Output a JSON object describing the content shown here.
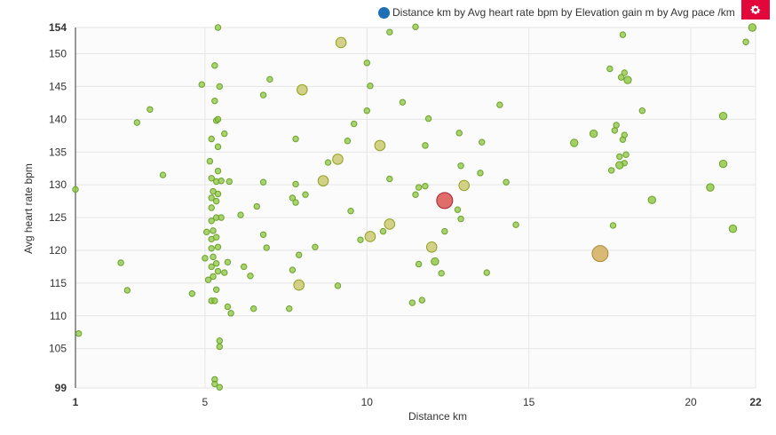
{
  "legend": {
    "label": "Distance km by Avg heart rate bpm by Elevation gain m by Avg pace /km",
    "dot_color": "#1f6fb5"
  },
  "toolbar": {
    "settings_icon": "gear-icon",
    "button_color": "#e2063a"
  },
  "chart_data": {
    "type": "scatter",
    "title": "",
    "xlabel": "Distance km",
    "ylabel": "Avg heart rate bpm",
    "xlim": [
      1,
      22
    ],
    "ylim": [
      99,
      154
    ],
    "x_ticks": [
      "1",
      "5",
      "10",
      "15",
      "20",
      "22"
    ],
    "y_ticks": [
      "99",
      "105",
      "110",
      "115",
      "120",
      "125",
      "130",
      "135",
      "140",
      "145",
      "150",
      "154"
    ],
    "grid": true,
    "legend_position": "top-right",
    "colors": {
      "low": "#8cc63f",
      "mid": "#c9c66a",
      "high": "#d9534f"
    },
    "points": [
      {
        "x": 1.0,
        "y": 129.3,
        "s": 1
      },
      {
        "x": 1.1,
        "y": 107.3,
        "s": 1
      },
      {
        "x": 2.4,
        "y": 118.1,
        "s": 1
      },
      {
        "x": 2.6,
        "y": 113.9,
        "s": 1
      },
      {
        "x": 2.9,
        "y": 139.5,
        "s": 1
      },
      {
        "x": 3.3,
        "y": 141.5,
        "s": 1
      },
      {
        "x": 3.7,
        "y": 131.5,
        "s": 1
      },
      {
        "x": 4.6,
        "y": 113.4,
        "s": 1
      },
      {
        "x": 4.9,
        "y": 145.3,
        "s": 1
      },
      {
        "x": 5.0,
        "y": 118.8,
        "s": 1
      },
      {
        "x": 5.05,
        "y": 122.8,
        "s": 1
      },
      {
        "x": 5.1,
        "y": 115.5,
        "s": 1
      },
      {
        "x": 5.15,
        "y": 133.6,
        "s": 1
      },
      {
        "x": 5.2,
        "y": 137.0,
        "s": 1
      },
      {
        "x": 5.2,
        "y": 131.0,
        "s": 1
      },
      {
        "x": 5.2,
        "y": 128.0,
        "s": 1
      },
      {
        "x": 5.2,
        "y": 124.5,
        "s": 1
      },
      {
        "x": 5.2,
        "y": 120.3,
        "s": 1
      },
      {
        "x": 5.2,
        "y": 117.5,
        "s": 1
      },
      {
        "x": 5.2,
        "y": 112.3,
        "s": 1
      },
      {
        "x": 5.2,
        "y": 126.5,
        "s": 1
      },
      {
        "x": 5.2,
        "y": 121.7,
        "s": 1
      },
      {
        "x": 5.25,
        "y": 129.0,
        "s": 1
      },
      {
        "x": 5.25,
        "y": 123.0,
        "s": 1
      },
      {
        "x": 5.25,
        "y": 119.0,
        "s": 1
      },
      {
        "x": 5.25,
        "y": 116.0,
        "s": 1
      },
      {
        "x": 5.3,
        "y": 100.3,
        "s": 1
      },
      {
        "x": 5.3,
        "y": 99.6,
        "s": 1
      },
      {
        "x": 5.3,
        "y": 112.3,
        "s": 1
      },
      {
        "x": 5.3,
        "y": 142.8,
        "s": 1
      },
      {
        "x": 5.3,
        "y": 148.2,
        "s": 1
      },
      {
        "x": 5.35,
        "y": 130.5,
        "s": 1
      },
      {
        "x": 5.35,
        "y": 127.5,
        "s": 1
      },
      {
        "x": 5.35,
        "y": 125.0,
        "s": 1
      },
      {
        "x": 5.35,
        "y": 122.0,
        "s": 1
      },
      {
        "x": 5.35,
        "y": 118.0,
        "s": 1
      },
      {
        "x": 5.35,
        "y": 114.0,
        "s": 1
      },
      {
        "x": 5.35,
        "y": 139.8,
        "s": 1
      },
      {
        "x": 5.4,
        "y": 154.0,
        "s": 1
      },
      {
        "x": 5.4,
        "y": 135.8,
        "s": 1
      },
      {
        "x": 5.4,
        "y": 132.1,
        "s": 1
      },
      {
        "x": 5.4,
        "y": 128.6,
        "s": 1
      },
      {
        "x": 5.4,
        "y": 120.5,
        "s": 1
      },
      {
        "x": 5.4,
        "y": 116.8,
        "s": 1
      },
      {
        "x": 5.4,
        "y": 140.0,
        "s": 1
      },
      {
        "x": 5.45,
        "y": 106.2,
        "s": 1
      },
      {
        "x": 5.45,
        "y": 105.3,
        "s": 1
      },
      {
        "x": 5.45,
        "y": 99.1,
        "s": 1
      },
      {
        "x": 5.45,
        "y": 145.0,
        "s": 1
      },
      {
        "x": 5.5,
        "y": 125.0,
        "s": 1
      },
      {
        "x": 5.5,
        "y": 130.6,
        "s": 1
      },
      {
        "x": 5.6,
        "y": 137.8,
        "s": 1
      },
      {
        "x": 5.6,
        "y": 116.6,
        "s": 1
      },
      {
        "x": 5.7,
        "y": 118.2,
        "s": 1
      },
      {
        "x": 5.7,
        "y": 111.4,
        "s": 1
      },
      {
        "x": 5.8,
        "y": 110.4,
        "s": 1
      },
      {
        "x": 5.75,
        "y": 130.5,
        "s": 1
      },
      {
        "x": 6.1,
        "y": 125.4,
        "s": 1
      },
      {
        "x": 6.2,
        "y": 117.5,
        "s": 1
      },
      {
        "x": 6.4,
        "y": 116.1,
        "s": 1
      },
      {
        "x": 6.5,
        "y": 111.1,
        "s": 1
      },
      {
        "x": 6.6,
        "y": 126.7,
        "s": 1
      },
      {
        "x": 6.8,
        "y": 143.7,
        "s": 1
      },
      {
        "x": 6.8,
        "y": 130.4,
        "s": 1
      },
      {
        "x": 6.8,
        "y": 122.4,
        "s": 1
      },
      {
        "x": 6.9,
        "y": 120.4,
        "s": 1
      },
      {
        "x": 7.0,
        "y": 146.1,
        "s": 1
      },
      {
        "x": 7.6,
        "y": 111.1,
        "s": 1
      },
      {
        "x": 7.7,
        "y": 117.0,
        "s": 1
      },
      {
        "x": 7.7,
        "y": 128.0,
        "s": 1
      },
      {
        "x": 7.8,
        "y": 137.0,
        "s": 1
      },
      {
        "x": 7.8,
        "y": 130.1,
        "s": 1
      },
      {
        "x": 7.8,
        "y": 127.3,
        "s": 1
      },
      {
        "x": 7.9,
        "y": 119.3,
        "s": 1
      },
      {
        "x": 8.1,
        "y": 128.5,
        "s": 1
      },
      {
        "x": 8.4,
        "y": 120.5,
        "s": 1
      },
      {
        "x": 8.8,
        "y": 133.4,
        "s": 1
      },
      {
        "x": 9.1,
        "y": 114.6,
        "s": 1
      },
      {
        "x": 9.4,
        "y": 136.7,
        "s": 1
      },
      {
        "x": 9.5,
        "y": 126.0,
        "s": 1
      },
      {
        "x": 9.6,
        "y": 139.3,
        "s": 1
      },
      {
        "x": 9.8,
        "y": 121.6,
        "s": 1
      },
      {
        "x": 10.0,
        "y": 141.3,
        "s": 1
      },
      {
        "x": 10.0,
        "y": 148.6,
        "s": 1
      },
      {
        "x": 10.1,
        "y": 145.1,
        "s": 1
      },
      {
        "x": 10.5,
        "y": 122.9,
        "s": 1
      },
      {
        "x": 10.7,
        "y": 153.3,
        "s": 1
      },
      {
        "x": 10.7,
        "y": 130.9,
        "s": 1
      },
      {
        "x": 11.1,
        "y": 142.6,
        "s": 1
      },
      {
        "x": 11.4,
        "y": 112.0,
        "s": 1
      },
      {
        "x": 11.5,
        "y": 128.5,
        "s": 1
      },
      {
        "x": 11.5,
        "y": 154.1,
        "s": 1
      },
      {
        "x": 11.6,
        "y": 129.6,
        "s": 1
      },
      {
        "x": 11.6,
        "y": 117.9,
        "s": 1
      },
      {
        "x": 11.7,
        "y": 112.4,
        "s": 1
      },
      {
        "x": 11.8,
        "y": 129.8,
        "s": 1
      },
      {
        "x": 11.8,
        "y": 136.0,
        "s": 1
      },
      {
        "x": 11.9,
        "y": 140.1,
        "s": 1
      },
      {
        "x": 12.4,
        "y": 122.9,
        "s": 1
      },
      {
        "x": 12.3,
        "y": 116.5,
        "s": 1
      },
      {
        "x": 12.8,
        "y": 126.2,
        "s": 1
      },
      {
        "x": 12.9,
        "y": 124.8,
        "s": 1
      },
      {
        "x": 12.85,
        "y": 137.9,
        "s": 1
      },
      {
        "x": 12.9,
        "y": 132.9,
        "s": 1
      },
      {
        "x": 13.5,
        "y": 131.8,
        "s": 1
      },
      {
        "x": 13.55,
        "y": 136.5,
        "s": 1
      },
      {
        "x": 13.7,
        "y": 116.6,
        "s": 1
      },
      {
        "x": 14.1,
        "y": 142.2,
        "s": 1
      },
      {
        "x": 14.3,
        "y": 130.4,
        "s": 1
      },
      {
        "x": 14.6,
        "y": 123.9,
        "s": 1
      },
      {
        "x": 16.4,
        "y": 136.4,
        "s": 2
      },
      {
        "x": 17.0,
        "y": 137.8,
        "s": 2
      },
      {
        "x": 17.5,
        "y": 147.7,
        "s": 1
      },
      {
        "x": 17.55,
        "y": 132.2,
        "s": 1
      },
      {
        "x": 17.6,
        "y": 123.8,
        "s": 1
      },
      {
        "x": 17.65,
        "y": 138.3,
        "s": 1
      },
      {
        "x": 17.7,
        "y": 139.1,
        "s": 1
      },
      {
        "x": 17.8,
        "y": 133.0,
        "s": 2
      },
      {
        "x": 17.8,
        "y": 134.3,
        "s": 1
      },
      {
        "x": 17.85,
        "y": 146.4,
        "s": 1
      },
      {
        "x": 17.9,
        "y": 136.9,
        "s": 1
      },
      {
        "x": 17.95,
        "y": 147.1,
        "s": 1
      },
      {
        "x": 17.9,
        "y": 152.9,
        "s": 1
      },
      {
        "x": 17.95,
        "y": 137.6,
        "s": 1
      },
      {
        "x": 17.95,
        "y": 133.3,
        "s": 1
      },
      {
        "x": 18.0,
        "y": 134.6,
        "s": 1
      },
      {
        "x": 18.05,
        "y": 146.0,
        "s": 2
      },
      {
        "x": 18.5,
        "y": 141.3,
        "s": 1
      },
      {
        "x": 18.8,
        "y": 127.7,
        "s": 2
      },
      {
        "x": 20.6,
        "y": 129.6,
        "s": 2
      },
      {
        "x": 21.0,
        "y": 140.5,
        "s": 2
      },
      {
        "x": 21.0,
        "y": 133.2,
        "s": 2
      },
      {
        "x": 21.3,
        "y": 123.3,
        "s": 2
      },
      {
        "x": 21.7,
        "y": 151.8,
        "s": 1
      },
      {
        "x": 21.9,
        "y": 154.0,
        "s": 2
      },
      {
        "x": 8.0,
        "y": 144.5,
        "s": 3
      },
      {
        "x": 9.2,
        "y": 151.7,
        "s": 3
      },
      {
        "x": 8.65,
        "y": 130.6,
        "s": 3
      },
      {
        "x": 7.9,
        "y": 114.7,
        "s": 3
      },
      {
        "x": 9.1,
        "y": 133.9,
        "s": 3
      },
      {
        "x": 10.1,
        "y": 122.1,
        "s": 3
      },
      {
        "x": 10.4,
        "y": 136.0,
        "s": 3
      },
      {
        "x": 10.7,
        "y": 124.0,
        "s": 3
      },
      {
        "x": 12.0,
        "y": 120.5,
        "s": 3
      },
      {
        "x": 12.1,
        "y": 118.3,
        "s": 2
      },
      {
        "x": 13.0,
        "y": 129.9,
        "s": 3
      },
      {
        "x": 12.4,
        "y": 127.6,
        "s": 4
      },
      {
        "x": 17.2,
        "y": 119.5,
        "s": 4
      }
    ]
  }
}
